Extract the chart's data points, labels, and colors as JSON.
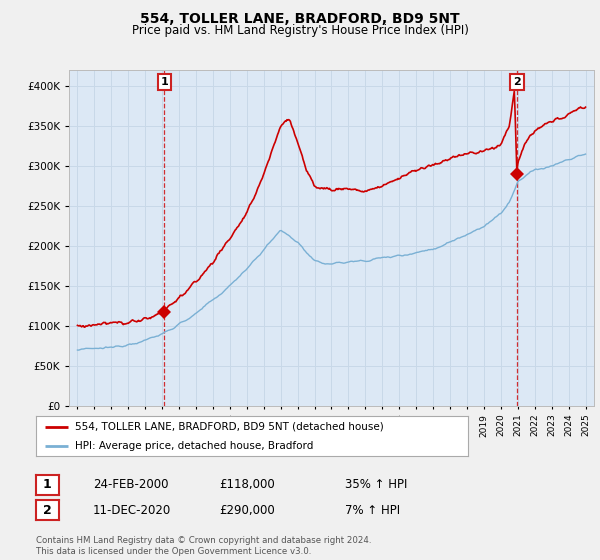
{
  "title": "554, TOLLER LANE, BRADFORD, BD9 5NT",
  "subtitle": "Price paid vs. HM Land Registry's House Price Index (HPI)",
  "red_label": "554, TOLLER LANE, BRADFORD, BD9 5NT (detached house)",
  "blue_label": "HPI: Average price, detached house, Bradford",
  "annotation1_date": "24-FEB-2000",
  "annotation1_price": "£118,000",
  "annotation1_hpi": "35% ↑ HPI",
  "annotation1_year": 2000.12,
  "annotation1_value": 118000,
  "annotation2_date": "11-DEC-2020",
  "annotation2_price": "£290,000",
  "annotation2_hpi": "7% ↑ HPI",
  "annotation2_year": 2020.95,
  "annotation2_value": 290000,
  "footer": "Contains HM Land Registry data © Crown copyright and database right 2024.\nThis data is licensed under the Open Government Licence v3.0.",
  "ylim": [
    0,
    420000
  ],
  "xlim_start": 1994.5,
  "xlim_end": 2025.5,
  "background_color": "#f0f0f0",
  "plot_bg_color": "#dce8f5",
  "red_color": "#cc0000",
  "blue_color": "#7ab0d4",
  "grid_color": "#c8d8e8",
  "annotation_box_color": "#cc2222",
  "title_fontsize": 10,
  "subtitle_fontsize": 8.5
}
